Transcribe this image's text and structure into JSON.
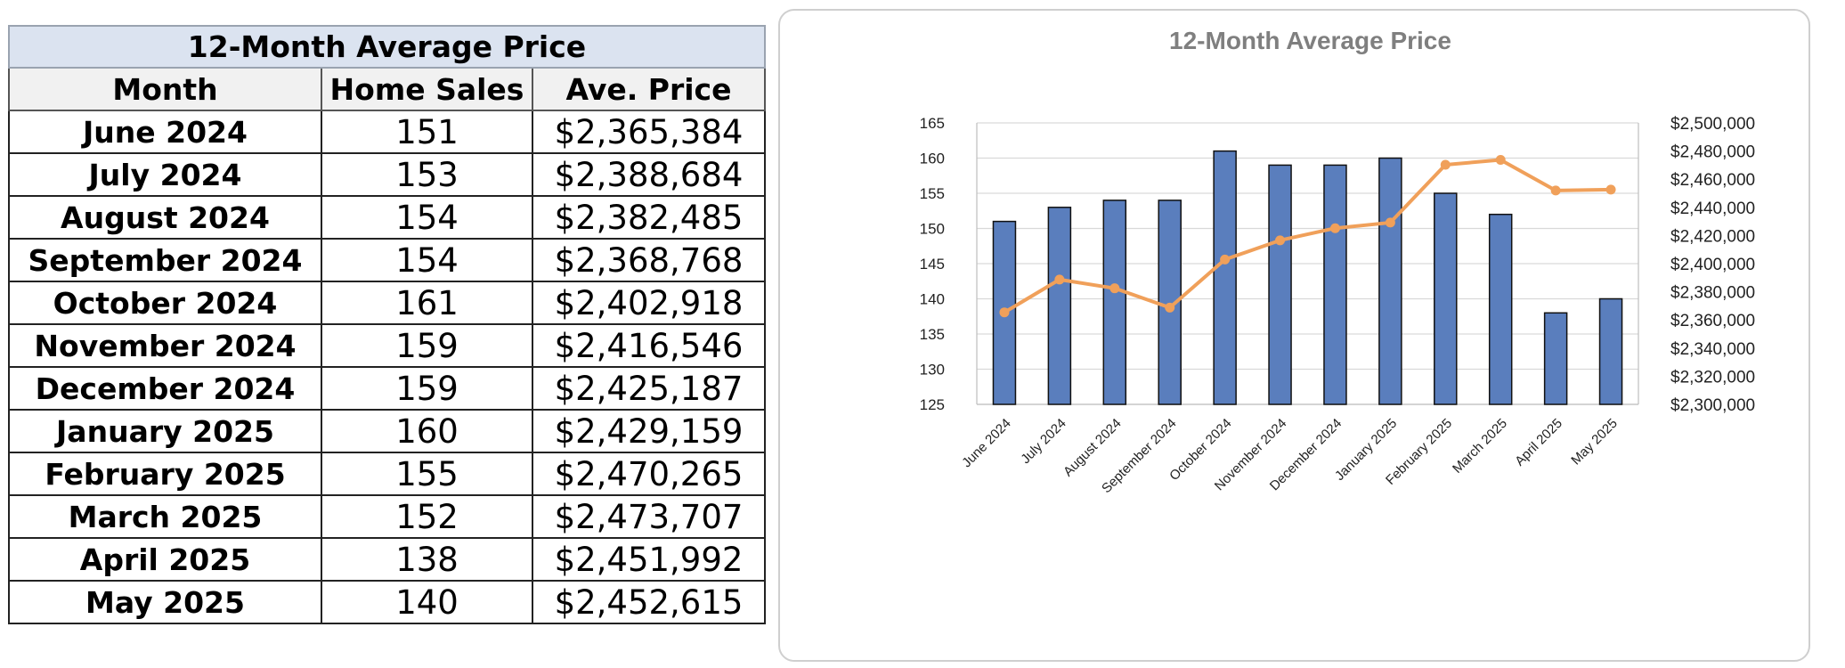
{
  "table": {
    "title": "12-Month Average Price",
    "headers": [
      "Month",
      "Home Sales",
      "Ave. Price"
    ],
    "rows": [
      [
        "June 2024",
        "151",
        "$2,365,384"
      ],
      [
        "July 2024",
        "153",
        "$2,388,684"
      ],
      [
        "August 2024",
        "154",
        "$2,382,485"
      ],
      [
        "September 2024",
        "154",
        "$2,368,768"
      ],
      [
        "October 2024",
        "161",
        "$2,402,918"
      ],
      [
        "November 2024",
        "159",
        "$2,416,546"
      ],
      [
        "December 2024",
        "159",
        "$2,425,187"
      ],
      [
        "January 2025",
        "160",
        "$2,429,159"
      ],
      [
        "February 2025",
        "155",
        "$2,470,265"
      ],
      [
        "March 2025",
        "152",
        "$2,473,707"
      ],
      [
        "April 2025",
        "138",
        "$2,451,992"
      ],
      [
        "May 2025",
        "140",
        "$2,452,615"
      ]
    ]
  },
  "chart_data": {
    "type": "bar",
    "title": "12-Month Average Price",
    "categories": [
      "June 2024",
      "July 2024",
      "August 2024",
      "September 2024",
      "October 2024",
      "November 2024",
      "December 2024",
      "January 2025",
      "February 2025",
      "March 2025",
      "April 2025",
      "May 2025"
    ],
    "series": [
      {
        "type": "bar",
        "axis": "left",
        "color": "#5a7ebd",
        "values": [
          151,
          153,
          154,
          154,
          161,
          159,
          159,
          160,
          155,
          152,
          138,
          140
        ]
      },
      {
        "type": "line",
        "axis": "right",
        "color": "#f0a05a",
        "values": [
          2365384,
          2388684,
          2382485,
          2368768,
          2402918,
          2416546,
          2425187,
          2429159,
          2470265,
          2473707,
          2451992,
          2452615
        ]
      }
    ],
    "y_left": {
      "min": 125,
      "max": 165,
      "ticks": [
        "165",
        "160",
        "155",
        "150",
        "145",
        "140",
        "135",
        "130",
        "125"
      ]
    },
    "y_right": {
      "min": 2300000,
      "max": 2500000,
      "ticks": [
        "$2,500,000",
        "$2,480,000",
        "$2,460,000",
        "$2,440,000",
        "$2,420,000",
        "$2,400,000",
        "$2,380,000",
        "$2,360,000",
        "$2,340,000",
        "$2,320,000",
        "$2,300,000"
      ]
    },
    "grid": true,
    "legend": "none"
  }
}
